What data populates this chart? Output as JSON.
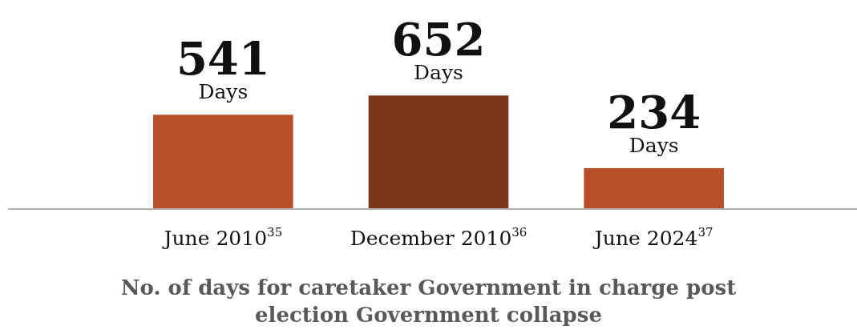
{
  "chart_data": {
    "type": "bar",
    "title": "No. of days for caretaker Government in charge post election Government collapse",
    "categories": [
      "June 2010$^{35}$",
      "December 2010$^{36}$",
      "June 2024$^{37}$"
    ],
    "values": [
      541,
      652,
      234
    ],
    "colors": [
      "#b94f29",
      "#7b3719",
      "#b94f29"
    ],
    "value_labels": [
      "541\nDays",
      "652\nDays",
      "234\nDays"
    ],
    "tick_labels": "x",
    "legend": false
  }
}
